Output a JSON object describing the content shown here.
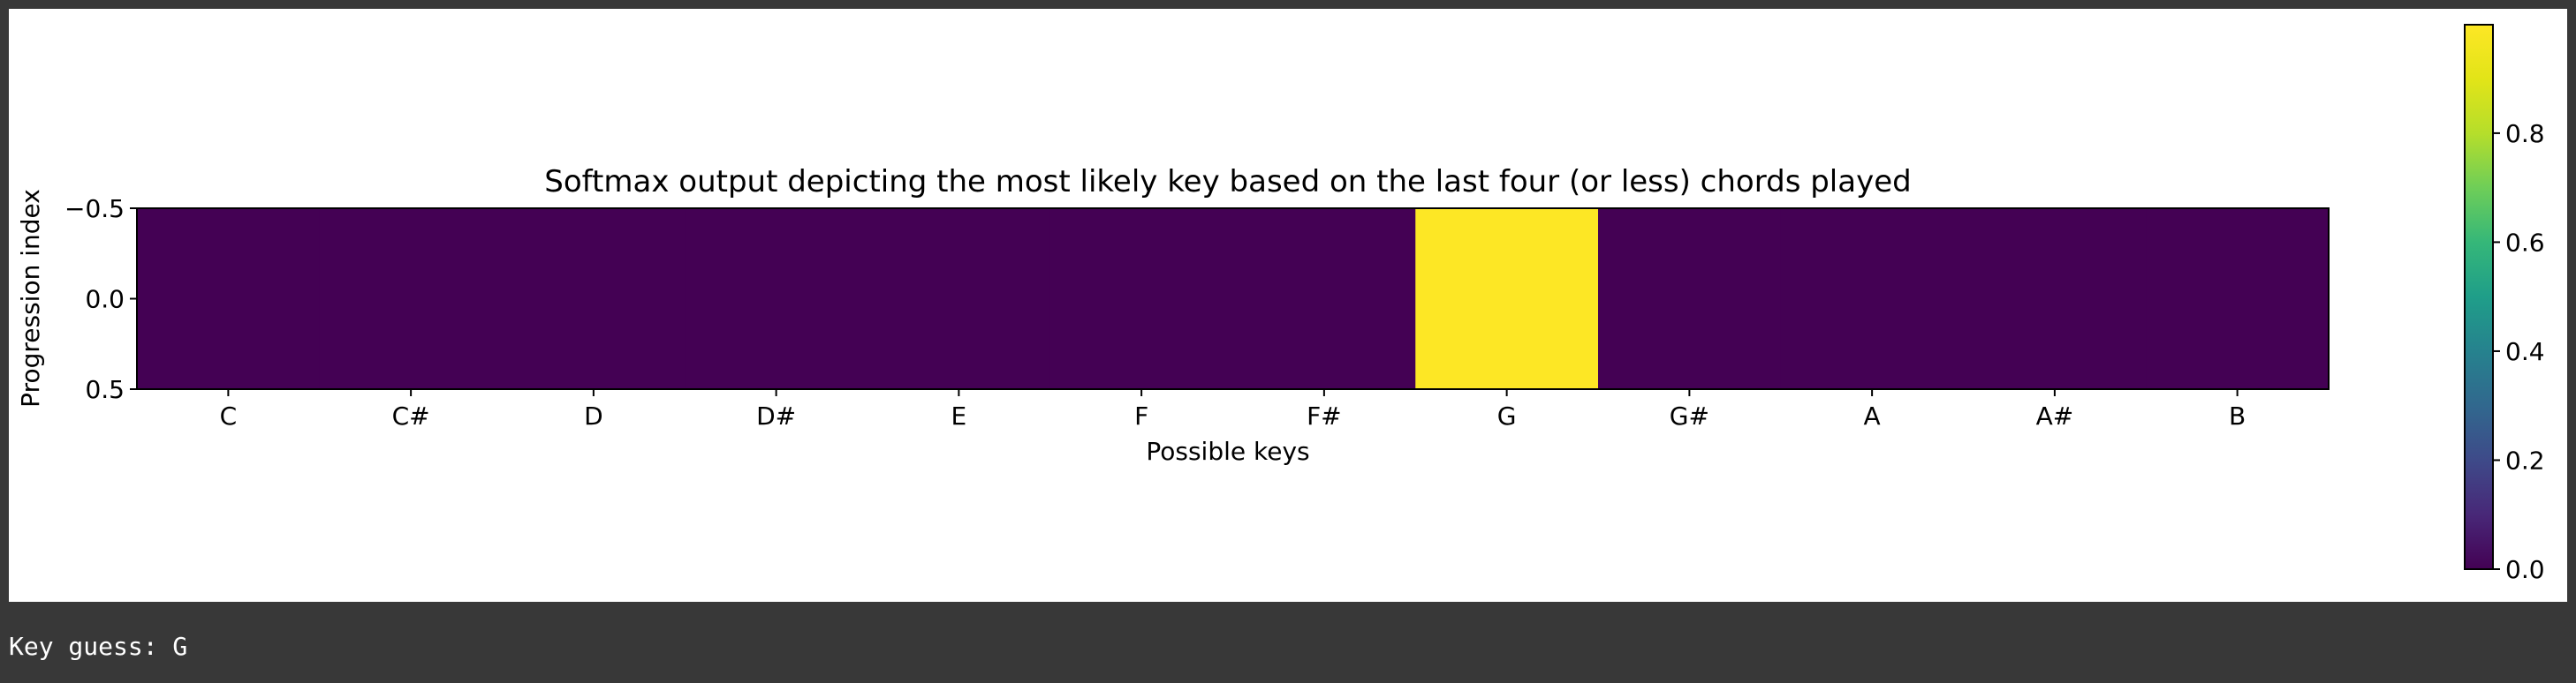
{
  "output": {
    "text": "Key guess: G"
  },
  "chart_data": {
    "type": "heatmap",
    "title": "Softmax output depicting the most likely key based on the last four (or less) chords played",
    "xlabel": "Possible keys",
    "ylabel": "Progression index",
    "categories": [
      "C",
      "C#",
      "D",
      "D#",
      "E",
      "F",
      "F#",
      "G",
      "G#",
      "A",
      "A#",
      "B"
    ],
    "y_ticks": [
      "−0.5",
      "0.0",
      "0.5"
    ],
    "values": [
      [
        0,
        0,
        0,
        0,
        0,
        0,
        0,
        1,
        0,
        0,
        0,
        0
      ]
    ],
    "colorbar": {
      "ticks": [
        {
          "value": 0.0,
          "label": "0.0"
        },
        {
          "value": 0.2,
          "label": "0.2"
        },
        {
          "value": 0.4,
          "label": "0.4"
        },
        {
          "value": 0.6,
          "label": "0.6"
        },
        {
          "value": 0.8,
          "label": "0.8"
        }
      ],
      "range": [
        0,
        1
      ]
    },
    "colormap": "viridis",
    "colors": {
      "low": "#440154",
      "high": "#fde725"
    }
  }
}
